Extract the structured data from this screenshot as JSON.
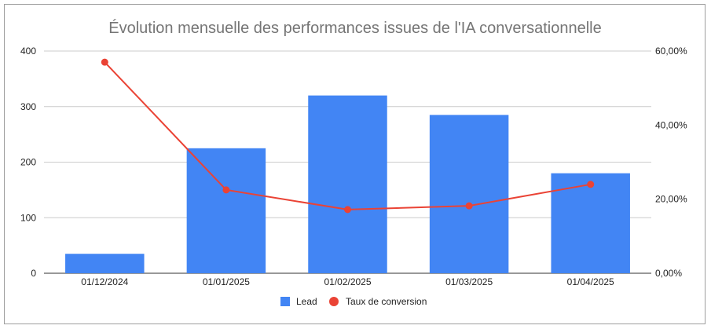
{
  "chart_data": {
    "type": "bar",
    "title": "Évolution mensuelle des performances issues de l'IA conversationnelle",
    "categories": [
      "01/12/2024",
      "01/01/2025",
      "01/02/2025",
      "01/03/2025",
      "01/04/2025"
    ],
    "series": [
      {
        "name": "Lead",
        "type": "bar",
        "axis": "left",
        "color": "#4285f4",
        "values": [
          35,
          225,
          320,
          285,
          180
        ]
      },
      {
        "name": "Taux de conversion",
        "type": "line",
        "axis": "right",
        "color": "#ea4335",
        "values": [
          0.57,
          0.225,
          0.172,
          0.182,
          0.24
        ]
      }
    ],
    "y_left": {
      "ylim": [
        0,
        400
      ],
      "ticks": [
        "0",
        "100",
        "200",
        "300",
        "400"
      ]
    },
    "y_right": {
      "ylim": [
        0,
        0.6
      ],
      "ticks": [
        "0,00%",
        "20,00%",
        "40,00%",
        "60,00%"
      ]
    },
    "grid": true,
    "legend": "bottom"
  }
}
